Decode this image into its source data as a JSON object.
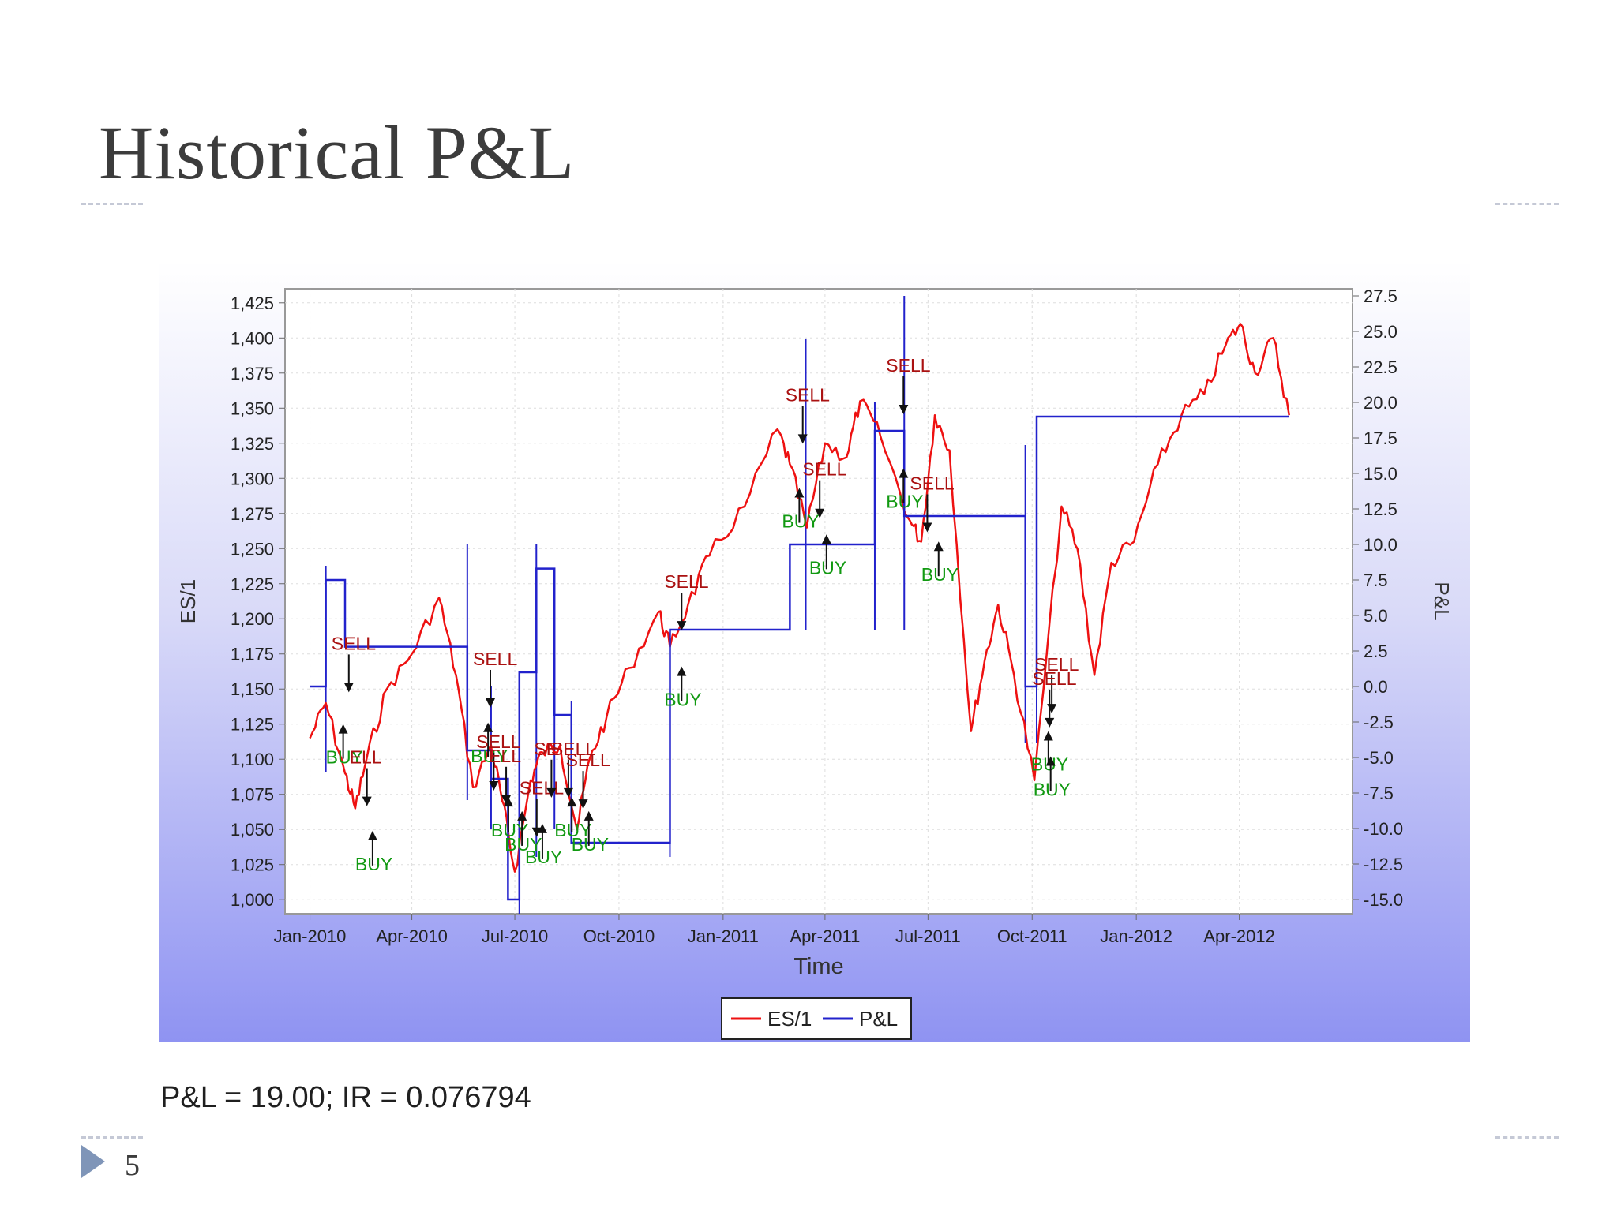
{
  "slide": {
    "title": "Historical P&L",
    "summary": "P&L = 19.00; IR = 0.076794",
    "page_number": "5",
    "bullet_icon": "triangle-right-icon"
  },
  "chart_data": {
    "type": "line",
    "xlabel": "Time",
    "ylabel": "ES/1",
    "y2label": "P&L",
    "x_ticks": [
      "Jan-2010",
      "Apr-2010",
      "Jul-2010",
      "Oct-2010",
      "Jan-2011",
      "Apr-2011",
      "Jul-2011",
      "Oct-2011",
      "Jan-2012",
      "Apr-2012"
    ],
    "y_ticks": [
      "1,000",
      "1,025",
      "1,050",
      "1,075",
      "1,100",
      "1,125",
      "1,150",
      "1,175",
      "1,200",
      "1,225",
      "1,250",
      "1,275",
      "1,300",
      "1,325",
      "1,350",
      "1,375",
      "1,400",
      "1,425"
    ],
    "y2_ticks": [
      "-15.0",
      "-12.5",
      "-10.0",
      "-7.5",
      "-5.0",
      "-2.5",
      "0.0",
      "2.5",
      "5.0",
      "7.5",
      "10.0",
      "12.5",
      "15.0",
      "17.5",
      "20.0",
      "22.5",
      "25.0",
      "27.5"
    ],
    "ylim": [
      990,
      1435
    ],
    "y2lim": [
      -16,
      28
    ],
    "grid": true,
    "legend_position": "bottom-center",
    "colors": {
      "es": "#ee1111",
      "pnl": "#2222cc",
      "buy": "#119911",
      "sell": "#aa1111"
    },
    "series": [
      {
        "name": "ES/1",
        "axis": "left",
        "points": [
          [
            "2010-01-01",
            1115
          ],
          [
            "2010-01-15",
            1140
          ],
          [
            "2010-02-01",
            1090
          ],
          [
            "2010-02-10",
            1065
          ],
          [
            "2010-02-20",
            1100
          ],
          [
            "2010-03-10",
            1150
          ],
          [
            "2010-04-01",
            1175
          ],
          [
            "2010-04-25",
            1215
          ],
          [
            "2010-05-10",
            1160
          ],
          [
            "2010-05-25",
            1080
          ],
          [
            "2010-06-10",
            1110
          ],
          [
            "2010-06-20",
            1070
          ],
          [
            "2010-07-01",
            1020
          ],
          [
            "2010-07-15",
            1085
          ],
          [
            "2010-07-25",
            1105
          ],
          [
            "2010-08-10",
            1110
          ],
          [
            "2010-08-25",
            1050
          ],
          [
            "2010-09-05",
            1100
          ],
          [
            "2010-09-20",
            1130
          ],
          [
            "2010-10-10",
            1165
          ],
          [
            "2010-11-05",
            1205
          ],
          [
            "2010-11-15",
            1180
          ],
          [
            "2010-12-01",
            1210
          ],
          [
            "2010-12-20",
            1245
          ],
          [
            "2011-01-20",
            1280
          ],
          [
            "2011-02-18",
            1335
          ],
          [
            "2011-03-01",
            1310
          ],
          [
            "2011-03-16",
            1265
          ],
          [
            "2011-04-01",
            1325
          ],
          [
            "2011-04-20",
            1315
          ],
          [
            "2011-05-02",
            1355
          ],
          [
            "2011-05-20",
            1330
          ],
          [
            "2011-06-15",
            1270
          ],
          [
            "2011-06-25",
            1255
          ],
          [
            "2011-07-07",
            1345
          ],
          [
            "2011-07-20",
            1320
          ],
          [
            "2011-08-08",
            1120
          ],
          [
            "2011-08-20",
            1170
          ],
          [
            "2011-09-01",
            1210
          ],
          [
            "2011-09-15",
            1160
          ],
          [
            "2011-10-03",
            1085
          ],
          [
            "2011-10-27",
            1280
          ],
          [
            "2011-11-10",
            1250
          ],
          [
            "2011-11-25",
            1160
          ],
          [
            "2011-12-10",
            1240
          ],
          [
            "2011-12-30",
            1255
          ],
          [
            "2012-01-20",
            1310
          ],
          [
            "2012-02-10",
            1345
          ],
          [
            "2012-03-01",
            1360
          ],
          [
            "2012-03-20",
            1395
          ],
          [
            "2012-04-02",
            1410
          ],
          [
            "2012-04-15",
            1375
          ],
          [
            "2012-05-01",
            1400
          ],
          [
            "2012-05-15",
            1345
          ]
        ]
      },
      {
        "name": "P&L",
        "axis": "right",
        "points": [
          [
            "2010-01-01",
            0.0
          ],
          [
            "2010-01-15",
            0.0
          ],
          [
            "2010-01-15",
            7.5
          ],
          [
            "2010-02-01",
            7.5
          ],
          [
            "2010-02-01",
            2.8
          ],
          [
            "2010-05-20",
            2.8
          ],
          [
            "2010-05-20",
            -4.5
          ],
          [
            "2010-06-10",
            -4.5
          ],
          [
            "2010-06-10",
            -6.5
          ],
          [
            "2010-06-25",
            -6.5
          ],
          [
            "2010-06-25",
            -15.0
          ],
          [
            "2010-07-05",
            -15.0
          ],
          [
            "2010-07-05",
            1.0
          ],
          [
            "2010-07-20",
            1.0
          ],
          [
            "2010-07-20",
            8.3
          ],
          [
            "2010-08-05",
            8.3
          ],
          [
            "2010-08-05",
            -2.0
          ],
          [
            "2010-08-20",
            -2.0
          ],
          [
            "2010-08-20",
            -11.0
          ],
          [
            "2010-11-15",
            -11.0
          ],
          [
            "2010-11-15",
            4.0
          ],
          [
            "2011-03-01",
            4.0
          ],
          [
            "2011-03-01",
            10.0
          ],
          [
            "2011-05-15",
            10.0
          ],
          [
            "2011-05-15",
            18.0
          ],
          [
            "2011-06-10",
            18.0
          ],
          [
            "2011-06-10",
            12.0
          ],
          [
            "2011-09-25",
            12.0
          ],
          [
            "2011-09-25",
            0.0
          ],
          [
            "2011-10-05",
            0.0
          ],
          [
            "2011-10-05",
            19.0
          ],
          [
            "2012-05-15",
            19.0
          ]
        ]
      }
    ],
    "spikes": [
      [
        "2010-01-15",
        -6,
        8.5
      ],
      [
        "2010-05-20",
        -8,
        10
      ],
      [
        "2010-06-10",
        -10,
        0
      ],
      [
        "2010-07-05",
        -16,
        1
      ],
      [
        "2010-07-20",
        -12,
        10
      ],
      [
        "2010-08-05",
        -10,
        2
      ],
      [
        "2010-08-20",
        -11,
        -1
      ],
      [
        "2010-11-15",
        -12,
        0
      ],
      [
        "2011-03-01",
        4,
        8.5
      ],
      [
        "2011-03-15",
        4,
        24.5
      ],
      [
        "2011-05-15",
        4,
        20
      ],
      [
        "2011-06-10",
        4,
        27.5
      ],
      [
        "2011-09-25",
        -4,
        17
      ],
      [
        "2011-10-05",
        -4,
        19
      ]
    ],
    "annotations": [
      {
        "label": "SELL",
        "x": "2010-01-20",
        "y": 1178,
        "kind": "sell"
      },
      {
        "label": "BUY",
        "x": "2010-01-15",
        "y": 1097,
        "kind": "buy"
      },
      {
        "label": "ELL",
        "x": "2010-02-05",
        "y": 1097,
        "kind": "sell"
      },
      {
        "label": "BUY",
        "x": "2010-02-10",
        "y": 1021,
        "kind": "buy"
      },
      {
        "label": "SELL",
        "x": "2010-05-25",
        "y": 1167,
        "kind": "sell"
      },
      {
        "label": "BUY",
        "x": "2010-05-23",
        "y": 1098,
        "kind": "buy"
      },
      {
        "label": "SELL",
        "x": "2010-05-28",
        "y": 1108,
        "kind": "sell"
      },
      {
        "label": "ELL",
        "x": "2010-06-08",
        "y": 1098,
        "kind": "sell"
      },
      {
        "label": "SELL",
        "x": "2010-07-05",
        "y": 1075,
        "kind": "sell"
      },
      {
        "label": "BUY",
        "x": "2010-06-10",
        "y": 1045,
        "kind": "buy"
      },
      {
        "label": "BUY",
        "x": "2010-06-22",
        "y": 1035,
        "kind": "buy"
      },
      {
        "label": "BUY",
        "x": "2010-07-10",
        "y": 1026,
        "kind": "buy"
      },
      {
        "label": "SE",
        "x": "2010-07-18",
        "y": 1103,
        "kind": "sell"
      },
      {
        "label": "SELL",
        "x": "2010-08-02",
        "y": 1103,
        "kind": "sell"
      },
      {
        "label": "SELL",
        "x": "2010-08-15",
        "y": 1095,
        "kind": "sell"
      },
      {
        "label": "BUY",
        "x": "2010-08-05",
        "y": 1045,
        "kind": "buy"
      },
      {
        "label": "BUY",
        "x": "2010-08-20",
        "y": 1035,
        "kind": "buy"
      },
      {
        "label": "SELL",
        "x": "2010-11-10",
        "y": 1222,
        "kind": "sell"
      },
      {
        "label": "BUY",
        "x": "2010-11-10",
        "y": 1138,
        "kind": "buy"
      },
      {
        "label": "SELL",
        "x": "2011-02-25",
        "y": 1355,
        "kind": "sell"
      },
      {
        "label": "SELL",
        "x": "2011-03-12",
        "y": 1302,
        "kind": "sell"
      },
      {
        "label": "BUY",
        "x": "2011-02-22",
        "y": 1265,
        "kind": "buy"
      },
      {
        "label": "BUY",
        "x": "2011-03-18",
        "y": 1232,
        "kind": "buy"
      },
      {
        "label": "SELL",
        "x": "2011-05-25",
        "y": 1376,
        "kind": "sell"
      },
      {
        "label": "BUY",
        "x": "2011-05-25",
        "y": 1279,
        "kind": "buy"
      },
      {
        "label": "SELL",
        "x": "2011-06-15",
        "y": 1292,
        "kind": "sell"
      },
      {
        "label": "BUY",
        "x": "2011-06-25",
        "y": 1227,
        "kind": "buy"
      },
      {
        "label": "SELL",
        "x": "2011-10-03",
        "y": 1163,
        "kind": "sell"
      },
      {
        "label": "SELL",
        "x": "2011-10-01",
        "y": 1153,
        "kind": "sell"
      },
      {
        "label": "BUY",
        "x": "2011-09-30",
        "y": 1092,
        "kind": "buy"
      },
      {
        "label": "BUY",
        "x": "2011-10-02",
        "y": 1074,
        "kind": "buy"
      }
    ]
  }
}
